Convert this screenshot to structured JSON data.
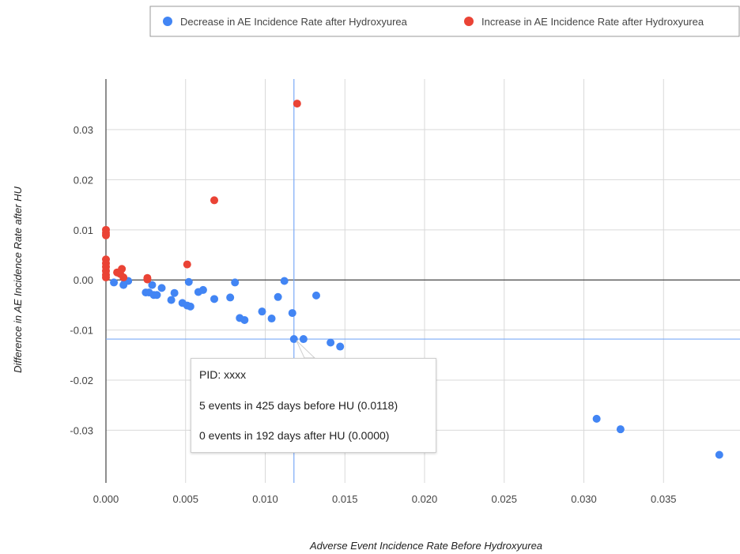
{
  "chart_data": {
    "type": "scatter",
    "xlabel": "Adverse Event Incidence Rate Before Hydroxyurea",
    "ylabel": "Difference in AE Incidence Rate after HU",
    "xlim": [
      0.0,
      0.0398
    ],
    "ylim": [
      -0.0405,
      0.0401
    ],
    "x_ticks": [
      "0.000",
      "0.005",
      "0.010",
      "0.015",
      "0.020",
      "0.025",
      "0.030",
      "0.035"
    ],
    "y_ticks": [
      "0.03",
      "0.02",
      "0.01",
      "0.00",
      "-0.01",
      "-0.02",
      "-0.03"
    ],
    "grid": true,
    "legend_position": "top",
    "series": [
      {
        "name": "Decrease in AE Incidence Rate after Hydroxyurea",
        "color": "#4285f4",
        "points": [
          {
            "x": 0.0005,
            "y": -0.0005
          },
          {
            "x": 0.0011,
            "y": -0.001
          },
          {
            "x": 0.0012,
            "y": -0.0003
          },
          {
            "x": 0.0014,
            "y": -0.0002
          },
          {
            "x": 0.0025,
            "y": -0.0025
          },
          {
            "x": 0.0027,
            "y": -0.0025
          },
          {
            "x": 0.0029,
            "y": -0.001
          },
          {
            "x": 0.003,
            "y": -0.003
          },
          {
            "x": 0.0032,
            "y": -0.003
          },
          {
            "x": 0.0035,
            "y": -0.0016
          },
          {
            "x": 0.0041,
            "y": -0.004
          },
          {
            "x": 0.0043,
            "y": -0.0026
          },
          {
            "x": 0.0048,
            "y": -0.0046
          },
          {
            "x": 0.0051,
            "y": -0.0051
          },
          {
            "x": 0.0052,
            "y": -0.0004
          },
          {
            "x": 0.0053,
            "y": -0.0053
          },
          {
            "x": 0.0058,
            "y": -0.0024
          },
          {
            "x": 0.0061,
            "y": -0.002
          },
          {
            "x": 0.0068,
            "y": -0.0038
          },
          {
            "x": 0.0078,
            "y": -0.0035
          },
          {
            "x": 0.0081,
            "y": -0.0005
          },
          {
            "x": 0.0084,
            "y": -0.0076
          },
          {
            "x": 0.0087,
            "y": -0.008
          },
          {
            "x": 0.0098,
            "y": -0.0063
          },
          {
            "x": 0.0104,
            "y": -0.0077
          },
          {
            "x": 0.0108,
            "y": -0.0034
          },
          {
            "x": 0.0112,
            "y": -0.0002
          },
          {
            "x": 0.0117,
            "y": -0.0066
          },
          {
            "x": 0.0118,
            "y": -0.0118
          },
          {
            "x": 0.0124,
            "y": -0.0118
          },
          {
            "x": 0.0132,
            "y": -0.0031
          },
          {
            "x": 0.0141,
            "y": -0.0125
          },
          {
            "x": 0.0147,
            "y": -0.0133
          },
          {
            "x": 0.0308,
            "y": -0.0277
          },
          {
            "x": 0.0323,
            "y": -0.0298
          },
          {
            "x": 0.0385,
            "y": -0.0349
          }
        ]
      },
      {
        "name": "Increase in AE Incidence Rate after Hydroxyurea",
        "color": "#ea4335",
        "points": [
          {
            "x": 0.0,
            "y": 0.01
          },
          {
            "x": 0.0,
            "y": 0.0094
          },
          {
            "x": 0.0,
            "y": 0.0089
          },
          {
            "x": 0.0,
            "y": 0.0041
          },
          {
            "x": 0.0,
            "y": 0.0033
          },
          {
            "x": 0.0,
            "y": 0.0026
          },
          {
            "x": 0.0,
            "y": 0.0018
          },
          {
            "x": 0.0,
            "y": 0.001
          },
          {
            "x": 0.0,
            "y": 0.0005
          },
          {
            "x": 0.0007,
            "y": 0.0015
          },
          {
            "x": 0.0009,
            "y": 0.0012
          },
          {
            "x": 0.001,
            "y": 0.0022
          },
          {
            "x": 0.0011,
            "y": 0.0005
          },
          {
            "x": 0.0026,
            "y": 0.0004
          },
          {
            "x": 0.0026,
            "y": 0.0001
          },
          {
            "x": 0.0051,
            "y": 0.0031
          },
          {
            "x": 0.0068,
            "y": 0.0159
          },
          {
            "x": 0.012,
            "y": 0.0352
          }
        ]
      }
    ],
    "crosshair": {
      "x": 0.0118,
      "y": -0.0118
    },
    "tooltip": {
      "pid": "PID:  xxxx",
      "before": "5 events in 425 days before HU (0.0118)",
      "after": "0 events in 192 days after HU (0.0000)"
    }
  }
}
